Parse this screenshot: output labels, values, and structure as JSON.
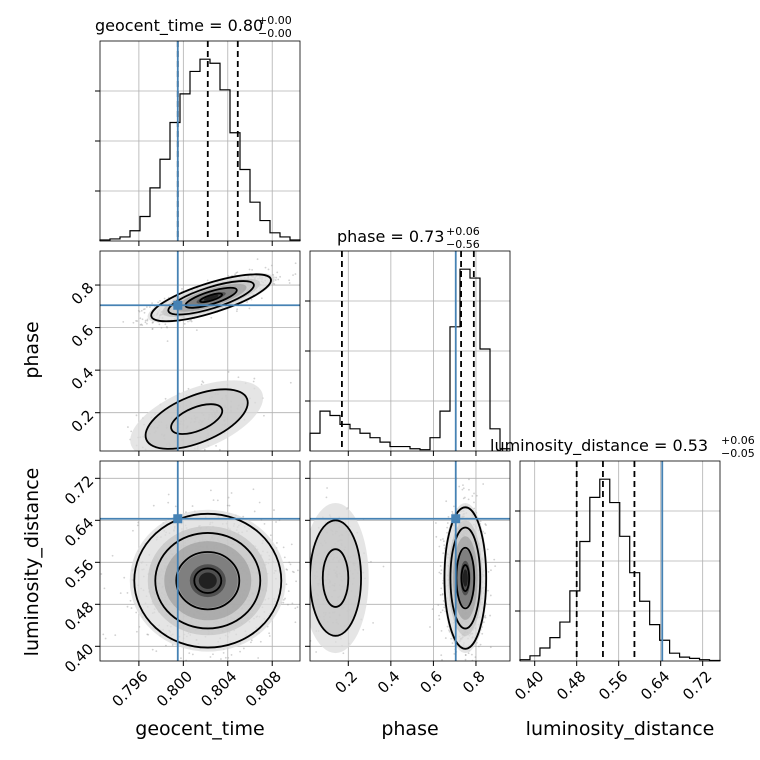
{
  "chart_data": {
    "type": "corner",
    "parameters": [
      "geocent_time",
      "phase",
      "luminosity_distance"
    ],
    "axis_labels": {
      "geocent_time": "geocent_time",
      "phase": "phase",
      "luminosity_distance": "luminosity_distance"
    },
    "ranges": {
      "geocent_time": [
        0.7925,
        0.8105
      ],
      "phase": [
        0.02,
        0.96
      ],
      "luminosity_distance": [
        0.372,
        0.753
      ]
    },
    "ticks": {
      "geocent_time": [
        0.796,
        0.8,
        0.804,
        0.808
      ],
      "phase": [
        0.2,
        0.4,
        0.6,
        0.8
      ],
      "phase_row": [
        0.2,
        0.4,
        0.6,
        0.8
      ],
      "luminosity_distance": [
        0.4,
        0.48,
        0.56,
        0.64,
        0.72
      ]
    },
    "tick_labels": {
      "geocent_time": [
        "0.796",
        "0.800",
        "0.804",
        "0.808"
      ],
      "phase": [
        "0.2",
        "0.4",
        "0.6",
        "0.8"
      ],
      "phase_row": [
        "0.2",
        "0.4",
        "0.6",
        "0.8"
      ],
      "luminosity_distance": [
        "0.40",
        "0.48",
        "0.56",
        "0.64",
        "0.72"
      ]
    },
    "truths": {
      "geocent_time": 0.7995,
      "phase": 0.705,
      "luminosity_distance": 0.643
    },
    "truth_color": "#4682b4",
    "grid": true,
    "titles": [
      {
        "param": "geocent_time",
        "main": "geocent_time = 0.80",
        "sup": "+0.00",
        "sub": "−0.00"
      },
      {
        "param": "phase",
        "main": "phase = 0.73",
        "sup": "+0.06",
        "sub": "−0.56"
      },
      {
        "param": "luminosity_distance",
        "main": "luminosity_distance = 0.53",
        "sup": "+0.06",
        "sub": "−0.05"
      }
    ],
    "marginals": {
      "geocent_time": {
        "bin_edges": [
          0.7925,
          0.7934,
          0.7943,
          0.7952,
          0.7961,
          0.797,
          0.7979,
          0.7988,
          0.7997,
          0.8006,
          0.8015,
          0.8024,
          0.8033,
          0.8042,
          0.8051,
          0.806,
          0.8069,
          0.8078,
          0.8087,
          0.8096,
          0.8105
        ],
        "counts": [
          0.5,
          1,
          2,
          5,
          12,
          26,
          40,
          58,
          72,
          83,
          89,
          87,
          74,
          53,
          35,
          19,
          10,
          4,
          2,
          0.5
        ],
        "quantiles": [
          0.7995,
          0.8022,
          0.8049
        ]
      },
      "phase": {
        "bin_edges": [
          0.02,
          0.067,
          0.114,
          0.161,
          0.208,
          0.255,
          0.302,
          0.349,
          0.396,
          0.443,
          0.49,
          0.537,
          0.584,
          0.631,
          0.678,
          0.725,
          0.772,
          0.819,
          0.866,
          0.913,
          0.96
        ],
        "counts": [
          4,
          9,
          8,
          6,
          5,
          4,
          3,
          2,
          1,
          1,
          0.5,
          0.3,
          3,
          9,
          28,
          41,
          39,
          23,
          5,
          0.5
        ],
        "quantiles": [
          0.17,
          0.73,
          0.79
        ]
      },
      "luminosity_distance": {
        "bin_edges": [
          0.372,
          0.391,
          0.41,
          0.429,
          0.448,
          0.467,
          0.486,
          0.505,
          0.524,
          0.543,
          0.562,
          0.581,
          0.6,
          0.619,
          0.638,
          0.657,
          0.676,
          0.695,
          0.714,
          0.733,
          0.753
        ],
        "counts": [
          0.5,
          2,
          5,
          9,
          15,
          27,
          46,
          63,
          70,
          61,
          48,
          34,
          23,
          14,
          8,
          3,
          1.5,
          1,
          0.5,
          0.2
        ],
        "quantiles": [
          0.48,
          0.53,
          0.59
        ]
      }
    },
    "joint_modes": {
      "phase_vs_geocent_time": [
        {
          "x": 0.8025,
          "y": 0.74,
          "sx": 0.0022,
          "sy": 0.045,
          "rho": 0.75,
          "weight": 0.8
        },
        {
          "x": 0.8012,
          "y": 0.17,
          "sx": 0.0023,
          "sy": 0.07,
          "rho": 0.55,
          "weight": 0.2
        }
      ],
      "luminosity_distance_vs_geocent_time": [
        {
          "x": 0.8022,
          "y": 0.525,
          "sx": 0.0027,
          "sy": 0.052,
          "rho": 0.0,
          "weight": 1.0
        }
      ],
      "luminosity_distance_vs_phase": [
        {
          "x": 0.75,
          "y": 0.53,
          "sx": 0.04,
          "sy": 0.055,
          "rho": 0.0,
          "weight": 0.8
        },
        {
          "x": 0.14,
          "y": 0.53,
          "sx": 0.06,
          "sy": 0.055,
          "rho": 0.0,
          "weight": 0.2
        }
      ]
    }
  }
}
